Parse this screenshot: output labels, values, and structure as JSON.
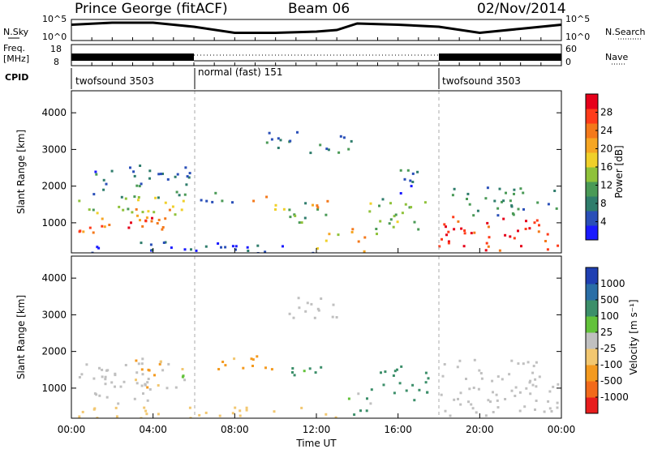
{
  "header": {
    "station": "Prince George (fitACF)",
    "beam": "Beam 06",
    "date": "02/Nov/2014"
  },
  "left_labels": {
    "nsky": "N.Sky",
    "freq": "Freq.",
    "freq_unit": "[MHz]",
    "cpid": "CPID"
  },
  "right_labels": {
    "nsearch": "N.Search",
    "nave": "Nave"
  },
  "chart_data": [
    {
      "type": "line",
      "name": "noise-panel",
      "left_ticks": [
        "10^5",
        "10^0"
      ],
      "right_ticks": [
        "10^5",
        "10^0"
      ],
      "x": [
        "00:00",
        "02:00",
        "04:00",
        "06:00",
        "08:00",
        "10:00",
        "12:00",
        "13:00",
        "14:00",
        "16:00",
        "18:00",
        "20:00",
        "22:00",
        "24:00"
      ],
      "nsky": [
        3.5,
        4.0,
        4.0,
        3.0,
        1.5,
        1.5,
        1.8,
        2.2,
        3.8,
        3.5,
        3.0,
        1.5,
        2.5,
        3.5
      ]
    },
    {
      "type": "line",
      "name": "freq-nave-panel",
      "left_ticks": [
        "18",
        "8"
      ],
      "right_ticks": [
        "60",
        "0"
      ],
      "segments": [
        {
          "from": 0,
          "to": 6,
          "freq_mhz": 10.5,
          "nave": 20
        },
        {
          "from": 6,
          "to": 18,
          "freq_mhz": 10.5,
          "nave": 35
        },
        {
          "from": 18,
          "to": 24,
          "freq_mhz": 10.5,
          "nave": 20
        }
      ]
    },
    {
      "type": "table",
      "name": "cpid-panel",
      "modes": [
        {
          "label": "twofsound 3503",
          "from": 0,
          "to": 6
        },
        {
          "label": "normal (fast) 151",
          "from": 6,
          "to": 18
        },
        {
          "label": "twofsound 3503",
          "from": 18,
          "to": 24
        }
      ]
    },
    {
      "type": "heatmap",
      "name": "power-panel",
      "ylabel": "Slant Range [km]",
      "yticks": [
        1000,
        2000,
        3000,
        4000
      ],
      "ylim": [
        180,
        4600
      ],
      "colorbar_label": "Power [dB]",
      "colorbar_ticks": [
        4,
        8,
        12,
        16,
        20,
        24,
        28
      ],
      "colors": [
        "#1a1aff",
        "#2a4fb8",
        "#2f7d6c",
        "#4a9a56",
        "#8fc23a",
        "#f0d02a",
        "#f6a623",
        "#f4791b",
        "#ff3b1a",
        "#e6001a"
      ],
      "blobs": [
        {
          "t0": 0.3,
          "t1": 4.6,
          "r0": 700,
          "r1": 1250,
          "v": 26
        },
        {
          "t0": 0.3,
          "t1": 5.6,
          "r0": 1200,
          "r1": 1750,
          "v": 16
        },
        {
          "t0": 0.8,
          "t1": 5.8,
          "r0": 1700,
          "r1": 2600,
          "v": 8
        },
        {
          "t0": 3.0,
          "t1": 5.0,
          "r0": 800,
          "r1": 1400,
          "v": 22
        },
        {
          "t0": 6.3,
          "t1": 8.0,
          "r0": 1500,
          "r1": 2000,
          "v": 10
        },
        {
          "t0": 8.8,
          "t1": 10.0,
          "r0": 1300,
          "r1": 1750,
          "v": 20
        },
        {
          "t0": 10.0,
          "t1": 12.5,
          "r0": 1000,
          "r1": 1600,
          "v": 14
        },
        {
          "t0": 11.2,
          "t1": 12.5,
          "r0": 1300,
          "r1": 1700,
          "v": 22
        },
        {
          "t0": 9.5,
          "t1": 13.8,
          "r0": 2900,
          "r1": 3500,
          "v": 9
        },
        {
          "t0": 12.0,
          "t1": 13.2,
          "r0": 300,
          "r1": 800,
          "v": 18
        },
        {
          "t0": 13.5,
          "t1": 14.5,
          "r0": 250,
          "r1": 900,
          "v": 22
        },
        {
          "t0": 14.5,
          "t1": 17.5,
          "r0": 700,
          "r1": 1700,
          "v": 14
        },
        {
          "t0": 15.5,
          "t1": 17.0,
          "r0": 1800,
          "r1": 2600,
          "v": 8
        },
        {
          "t0": 17.8,
          "t1": 23.9,
          "r0": 250,
          "r1": 1200,
          "v": 28
        },
        {
          "t0": 18.5,
          "t1": 23.9,
          "r0": 1200,
          "r1": 2000,
          "v": 10
        },
        {
          "t0": 0.2,
          "t1": 13.0,
          "r0": 200,
          "r1": 500,
          "v": 6
        }
      ]
    },
    {
      "type": "heatmap",
      "name": "velocity-panel",
      "ylabel": "Slant Range [km]",
      "yticks": [
        1000,
        2000,
        3000,
        4000
      ],
      "ylim": [
        180,
        4600
      ],
      "colorbar_label": "Velocity [m s⁻¹]",
      "colorbar_ticks": [
        -1000,
        -500,
        -100,
        -25,
        25,
        100,
        500,
        1000
      ],
      "colors": [
        "#e81d1d",
        "#f26a1b",
        "#f49a1f",
        "#f2c770",
        "#c0c0c0",
        "#62c23a",
        "#3c8f6a",
        "#2a6ea6",
        "#1f3fb2"
      ],
      "blobs": [
        {
          "t0": 0.3,
          "t1": 5.6,
          "r0": 600,
          "r1": 1700,
          "v": 0
        },
        {
          "t0": 3.0,
          "t1": 5.5,
          "r0": 1000,
          "r1": 1900,
          "v": -80
        },
        {
          "t0": 7.0,
          "t1": 10.0,
          "r0": 1400,
          "r1": 1900,
          "v": -200
        },
        {
          "t0": 10.0,
          "t1": 12.5,
          "r0": 1300,
          "r1": 1700,
          "v": 200
        },
        {
          "t0": 10.5,
          "t1": 13.8,
          "r0": 2900,
          "r1": 3500,
          "v": 0
        },
        {
          "t0": 13.5,
          "t1": 15.0,
          "r0": 300,
          "r1": 1000,
          "v": 150
        },
        {
          "t0": 15.0,
          "t1": 17.5,
          "r0": 700,
          "r1": 1700,
          "v": 300
        },
        {
          "t0": 17.8,
          "t1": 23.9,
          "r0": 250,
          "r1": 1800,
          "v": 0
        },
        {
          "t0": 0.2,
          "t1": 13.0,
          "r0": 200,
          "r1": 500,
          "v": -40
        }
      ]
    }
  ],
  "xaxis": {
    "ticks": [
      "00:00",
      "04:00",
      "08:00",
      "12:00",
      "16:00",
      "20:00",
      "00:00"
    ],
    "label": "Time UT"
  }
}
